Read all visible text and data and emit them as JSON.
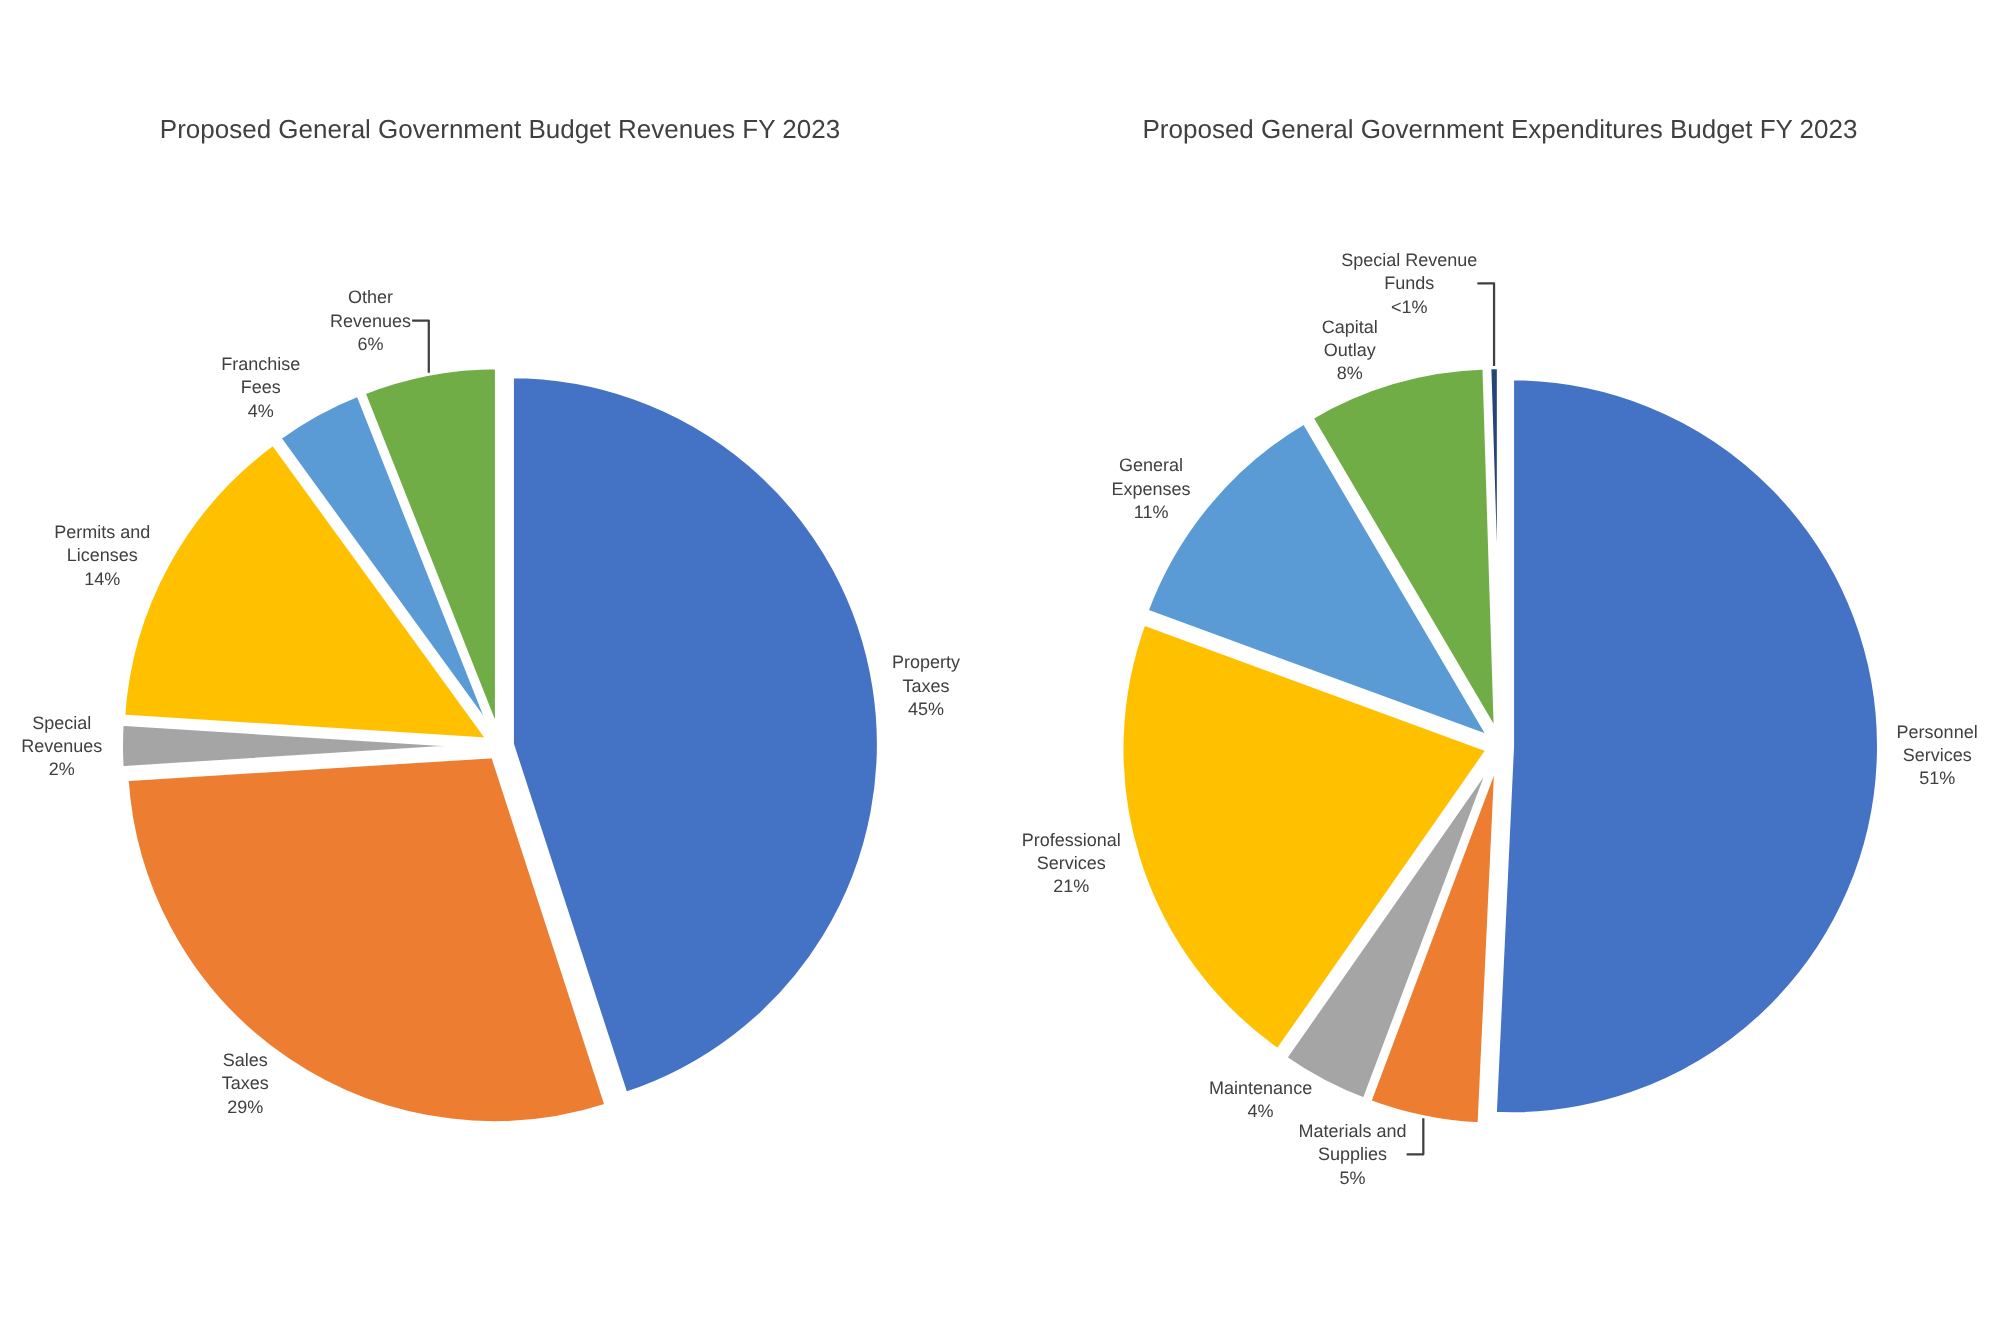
{
  "chart_data": [
    {
      "type": "pie",
      "title": "Proposed General Government Budget Revenues FY 2023",
      "categories": [
        "Property Taxes",
        "Sales Taxes",
        "Special Revenues",
        "Permits and Licenses",
        "Franchise Fees",
        "Other Revenues"
      ],
      "values": [
        45,
        29,
        2,
        14,
        4,
        6
      ],
      "value_labels": [
        "45%",
        "29%",
        "2%",
        "14%",
        "4%",
        "6%"
      ],
      "colors": [
        "#4472c4",
        "#ed7d31",
        "#a5a5a5",
        "#ffc000",
        "#5b9bd5",
        "#70ad47"
      ],
      "legend": false
    },
    {
      "type": "pie",
      "title": "Proposed General Government Expenditures Budget FY 2023",
      "categories": [
        "Personnel Services",
        "Materials and Supplies",
        "Maintenance",
        "Professional Services",
        "General Expenses",
        "Capital Outlay",
        "Special Revenue Funds"
      ],
      "values": [
        51,
        5,
        4,
        21,
        11,
        8,
        0.5
      ],
      "value_labels": [
        "51%",
        "5%",
        "4%",
        "21%",
        "11%",
        "8%",
        "<1%"
      ],
      "colors": [
        "#4472c4",
        "#ed7d31",
        "#a5a5a5",
        "#ffc000",
        "#5b9bd5",
        "#70ad47",
        "#264478"
      ],
      "legend": false
    }
  ]
}
